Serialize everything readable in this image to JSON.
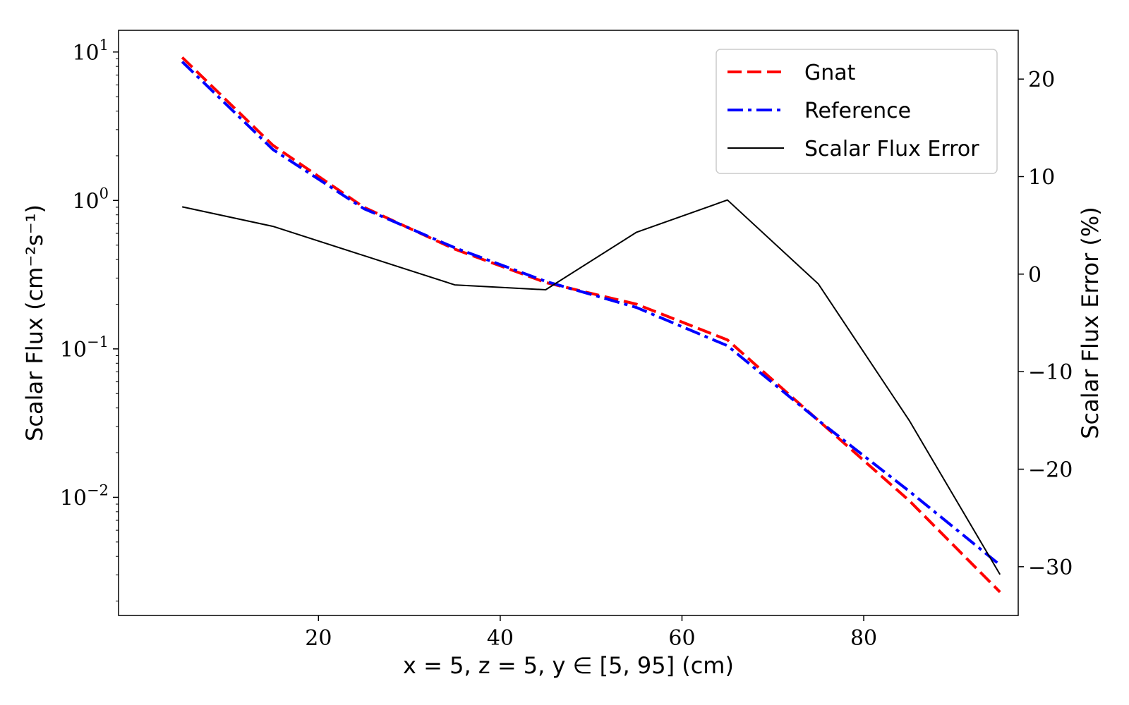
{
  "chart_data": {
    "type": "line",
    "x": [
      5,
      15,
      25,
      35,
      45,
      55,
      65,
      75,
      85,
      95
    ],
    "xlim": [
      -2,
      97
    ],
    "x_ticks": [
      20,
      40,
      60,
      80
    ],
    "x_tick_labels": [
      "20",
      "40",
      "60",
      "80"
    ],
    "xlabel": "x = 5, z = 5, y ∈ [5, 95] (cm)",
    "left_axis": {
      "label": "Scalar Flux (cm⁻²s⁻¹)",
      "scale": "log",
      "ylim": [
        0.0016,
        14
      ],
      "ticks": [
        10,
        1,
        0.1,
        0.01
      ],
      "tick_labels": [
        {
          "base": "10",
          "exp": "1"
        },
        {
          "base": "10",
          "exp": "0"
        },
        {
          "base": "10",
          "exp": "−1"
        },
        {
          "base": "10",
          "exp": "−2"
        }
      ]
    },
    "right_axis": {
      "label": "Scalar Flux Error (%)",
      "scale": "linear",
      "ylim": [
        -35,
        25
      ],
      "ticks": [
        20,
        10,
        0,
        -10,
        -20,
        -30
      ],
      "tick_labels": [
        "20",
        "10",
        "0",
        "−10",
        "−20",
        "−30"
      ]
    },
    "series": [
      {
        "name": "Gnat",
        "axis": "left",
        "color": "#ff0000",
        "style": "dashed",
        "values": [
          9.2,
          2.35,
          0.9,
          0.47,
          0.28,
          0.2,
          0.115,
          0.033,
          0.0095,
          0.0023
        ]
      },
      {
        "name": "Reference",
        "axis": "left",
        "color": "#0000ff",
        "style": "dashdot",
        "values": [
          8.6,
          2.2,
          0.88,
          0.48,
          0.285,
          0.19,
          0.105,
          0.033,
          0.011,
          0.0035
        ]
      },
      {
        "name": "Scalar Flux Error",
        "axis": "right",
        "color": "#000000",
        "style": "solid",
        "values": [
          6.9,
          4.9,
          1.9,
          -1.1,
          -1.6,
          4.3,
          7.6,
          -1.0,
          -15.0,
          -30.8
        ]
      }
    ],
    "legend": {
      "placement": "top-right"
    },
    "grid": false
  }
}
